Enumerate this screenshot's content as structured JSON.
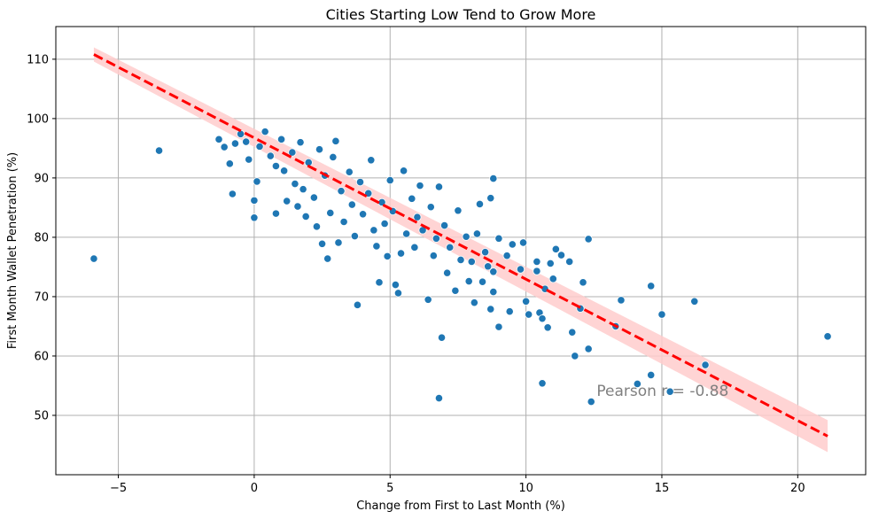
{
  "chart_data": {
    "type": "scatter",
    "title": "Cities Starting Low Tend to Grow More",
    "xlabel": "Change from First to Last Month (%)",
    "ylabel": "First Month Wallet Penetration (%)",
    "xlim": [
      -7.3,
      22.5
    ],
    "ylim": [
      40,
      115.5
    ],
    "xticks": [
      -5,
      0,
      5,
      10,
      15,
      20
    ],
    "yticks": [
      50,
      60,
      70,
      80,
      90,
      100,
      110
    ],
    "grid": true,
    "colors": {
      "points": "#1f77b4",
      "fit_line": "#ff0000",
      "band": "#ffcccc"
    },
    "regression": {
      "x": [
        -5.9,
        21.1
      ],
      "y": [
        110.8,
        46.5
      ],
      "ci_lower": [
        109.6,
        43.8
      ],
      "ci_upper": [
        112.0,
        49.2
      ],
      "style": "dashed"
    },
    "annotation": {
      "text": "Pearson r = -0.88",
      "x": 12.6,
      "y": 53.3
    },
    "points": [
      [
        -5.9,
        76.4
      ],
      [
        -3.5,
        94.6
      ],
      [
        -1.3,
        96.5
      ],
      [
        -1.1,
        95.2
      ],
      [
        -0.9,
        92.4
      ],
      [
        -0.8,
        87.3
      ],
      [
        -0.7,
        95.8
      ],
      [
        -0.5,
        97.4
      ],
      [
        -0.3,
        96.1
      ],
      [
        -0.2,
        93.1
      ],
      [
        0.0,
        86.2
      ],
      [
        0.0,
        83.3
      ],
      [
        0.1,
        89.4
      ],
      [
        0.2,
        95.3
      ],
      [
        0.4,
        97.8
      ],
      [
        0.6,
        93.7
      ],
      [
        0.8,
        92.0
      ],
      [
        0.8,
        84.0
      ],
      [
        1.0,
        96.5
      ],
      [
        1.1,
        91.2
      ],
      [
        1.2,
        86.1
      ],
      [
        1.4,
        94.3
      ],
      [
        1.5,
        89.0
      ],
      [
        1.6,
        85.2
      ],
      [
        1.7,
        96.0
      ],
      [
        1.8,
        88.1
      ],
      [
        1.9,
        83.5
      ],
      [
        2.0,
        92.6
      ],
      [
        2.2,
        86.7
      ],
      [
        2.3,
        81.8
      ],
      [
        2.4,
        94.8
      ],
      [
        2.5,
        78.9
      ],
      [
        2.6,
        90.4
      ],
      [
        2.7,
        76.4
      ],
      [
        2.8,
        84.1
      ],
      [
        2.9,
        93.5
      ],
      [
        3.0,
        96.2
      ],
      [
        3.1,
        79.1
      ],
      [
        3.2,
        87.8
      ],
      [
        3.3,
        82.6
      ],
      [
        3.5,
        91.0
      ],
      [
        3.6,
        85.5
      ],
      [
        3.7,
        80.2
      ],
      [
        3.8,
        68.6
      ],
      [
        3.9,
        89.3
      ],
      [
        4.0,
        83.9
      ],
      [
        4.2,
        87.4
      ],
      [
        4.3,
        93.0
      ],
      [
        4.4,
        81.2
      ],
      [
        4.5,
        78.5
      ],
      [
        4.6,
        72.4
      ],
      [
        4.7,
        85.9
      ],
      [
        4.8,
        82.3
      ],
      [
        4.9,
        76.8
      ],
      [
        5.0,
        89.6
      ],
      [
        5.1,
        84.4
      ],
      [
        5.2,
        72.0
      ],
      [
        5.3,
        70.6
      ],
      [
        5.4,
        77.3
      ],
      [
        5.5,
        91.2
      ],
      [
        5.6,
        80.6
      ],
      [
        5.8,
        86.5
      ],
      [
        5.9,
        78.3
      ],
      [
        6.0,
        83.4
      ],
      [
        6.1,
        88.7
      ],
      [
        6.2,
        81.2
      ],
      [
        6.4,
        69.5
      ],
      [
        6.5,
        85.1
      ],
      [
        6.6,
        76.9
      ],
      [
        6.7,
        79.8
      ],
      [
        6.8,
        88.5
      ],
      [
        6.9,
        63.1
      ],
      [
        6.8,
        52.9
      ],
      [
        7.0,
        82.0
      ],
      [
        7.1,
        74.0
      ],
      [
        7.2,
        78.3
      ],
      [
        7.4,
        71.0
      ],
      [
        7.5,
        84.5
      ],
      [
        7.6,
        76.2
      ],
      [
        7.8,
        80.1
      ],
      [
        7.9,
        72.6
      ],
      [
        8.0,
        75.9
      ],
      [
        8.1,
        69.0
      ],
      [
        8.2,
        80.6
      ],
      [
        8.3,
        85.6
      ],
      [
        8.4,
        72.5
      ],
      [
        8.5,
        77.5
      ],
      [
        8.6,
        75.1
      ],
      [
        8.7,
        86.6
      ],
      [
        8.8,
        74.2
      ],
      [
        8.8,
        89.9
      ],
      [
        8.7,
        67.9
      ],
      [
        8.8,
        70.8
      ],
      [
        9.0,
        79.8
      ],
      [
        9.0,
        64.9
      ],
      [
        9.3,
        76.9
      ],
      [
        9.4,
        67.5
      ],
      [
        9.5,
        78.8
      ],
      [
        9.8,
        74.6
      ],
      [
        9.9,
        79.1
      ],
      [
        10.0,
        69.2
      ],
      [
        10.1,
        67.0
      ],
      [
        10.4,
        75.9
      ],
      [
        10.4,
        74.3
      ],
      [
        10.5,
        67.3
      ],
      [
        10.6,
        66.3
      ],
      [
        10.7,
        71.3
      ],
      [
        10.6,
        55.4
      ],
      [
        10.8,
        64.8
      ],
      [
        10.9,
        75.6
      ],
      [
        11.0,
        73.0
      ],
      [
        11.1,
        78.0
      ],
      [
        11.3,
        77.0
      ],
      [
        11.6,
        75.9
      ],
      [
        11.7,
        64.0
      ],
      [
        11.8,
        60.0
      ],
      [
        12.0,
        68.0
      ],
      [
        12.1,
        72.4
      ],
      [
        12.3,
        79.7
      ],
      [
        12.3,
        61.2
      ],
      [
        12.4,
        52.3
      ],
      [
        13.3,
        65.0
      ],
      [
        13.5,
        69.4
      ],
      [
        14.1,
        55.3
      ],
      [
        14.6,
        71.8
      ],
      [
        14.6,
        56.8
      ],
      [
        15.0,
        67.0
      ],
      [
        15.3,
        54.0
      ],
      [
        16.2,
        69.2
      ],
      [
        16.6,
        58.5
      ],
      [
        21.1,
        63.3
      ]
    ]
  }
}
